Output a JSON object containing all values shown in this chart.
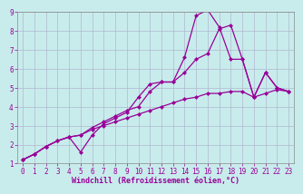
{
  "title": "",
  "xlabel": "Windchill (Refroidissement éolien,°C)",
  "ylabel": "",
  "bg_color": "#c8ecec",
  "line_color": "#990099",
  "grid_color": "#b0b8d0",
  "xlim": [
    -0.5,
    23.5
  ],
  "ylim": [
    1,
    9
  ],
  "xticks": [
    0,
    1,
    2,
    3,
    4,
    5,
    6,
    7,
    8,
    9,
    10,
    11,
    12,
    13,
    14,
    15,
    16,
    17,
    18,
    19,
    20,
    21,
    22,
    23
  ],
  "yticks": [
    1,
    2,
    3,
    4,
    5,
    6,
    7,
    8,
    9
  ],
  "line1_x": [
    0,
    1,
    2,
    3,
    4,
    5,
    6,
    7,
    8,
    9,
    10,
    11,
    12,
    13,
    14,
    15,
    16,
    17,
    18,
    19,
    20,
    21,
    22,
    23
  ],
  "line1_y": [
    1.2,
    1.5,
    1.9,
    2.2,
    2.4,
    1.6,
    2.5,
    3.1,
    3.4,
    3.7,
    4.5,
    5.2,
    5.3,
    5.3,
    6.6,
    8.8,
    9.1,
    8.2,
    6.5,
    6.5,
    4.5,
    5.8,
    5.0,
    4.8
  ],
  "line2_x": [
    0,
    1,
    2,
    3,
    4,
    5,
    6,
    7,
    8,
    9,
    10,
    11,
    12,
    13,
    14,
    15,
    16,
    17,
    18,
    19,
    20,
    21,
    22,
    23
  ],
  "line2_y": [
    1.2,
    1.5,
    1.9,
    2.2,
    2.4,
    2.5,
    2.9,
    3.2,
    3.5,
    3.8,
    4.0,
    4.8,
    5.3,
    5.3,
    5.8,
    6.5,
    6.8,
    8.1,
    8.3,
    6.5,
    4.5,
    5.8,
    5.0,
    4.8
  ],
  "line3_x": [
    0,
    1,
    2,
    3,
    4,
    5,
    6,
    7,
    8,
    9,
    10,
    11,
    12,
    13,
    14,
    15,
    16,
    17,
    18,
    19,
    20,
    21,
    22,
    23
  ],
  "line3_y": [
    1.2,
    1.5,
    1.9,
    2.2,
    2.4,
    2.5,
    2.8,
    3.0,
    3.2,
    3.4,
    3.6,
    3.8,
    4.0,
    4.2,
    4.4,
    4.5,
    4.7,
    4.7,
    4.8,
    4.8,
    4.5,
    4.7,
    4.9,
    4.8
  ],
  "marker": "D",
  "marker_size": 2.5,
  "line_width": 0.9,
  "tick_fontsize": 5.5,
  "xlabel_fontsize": 6.0
}
